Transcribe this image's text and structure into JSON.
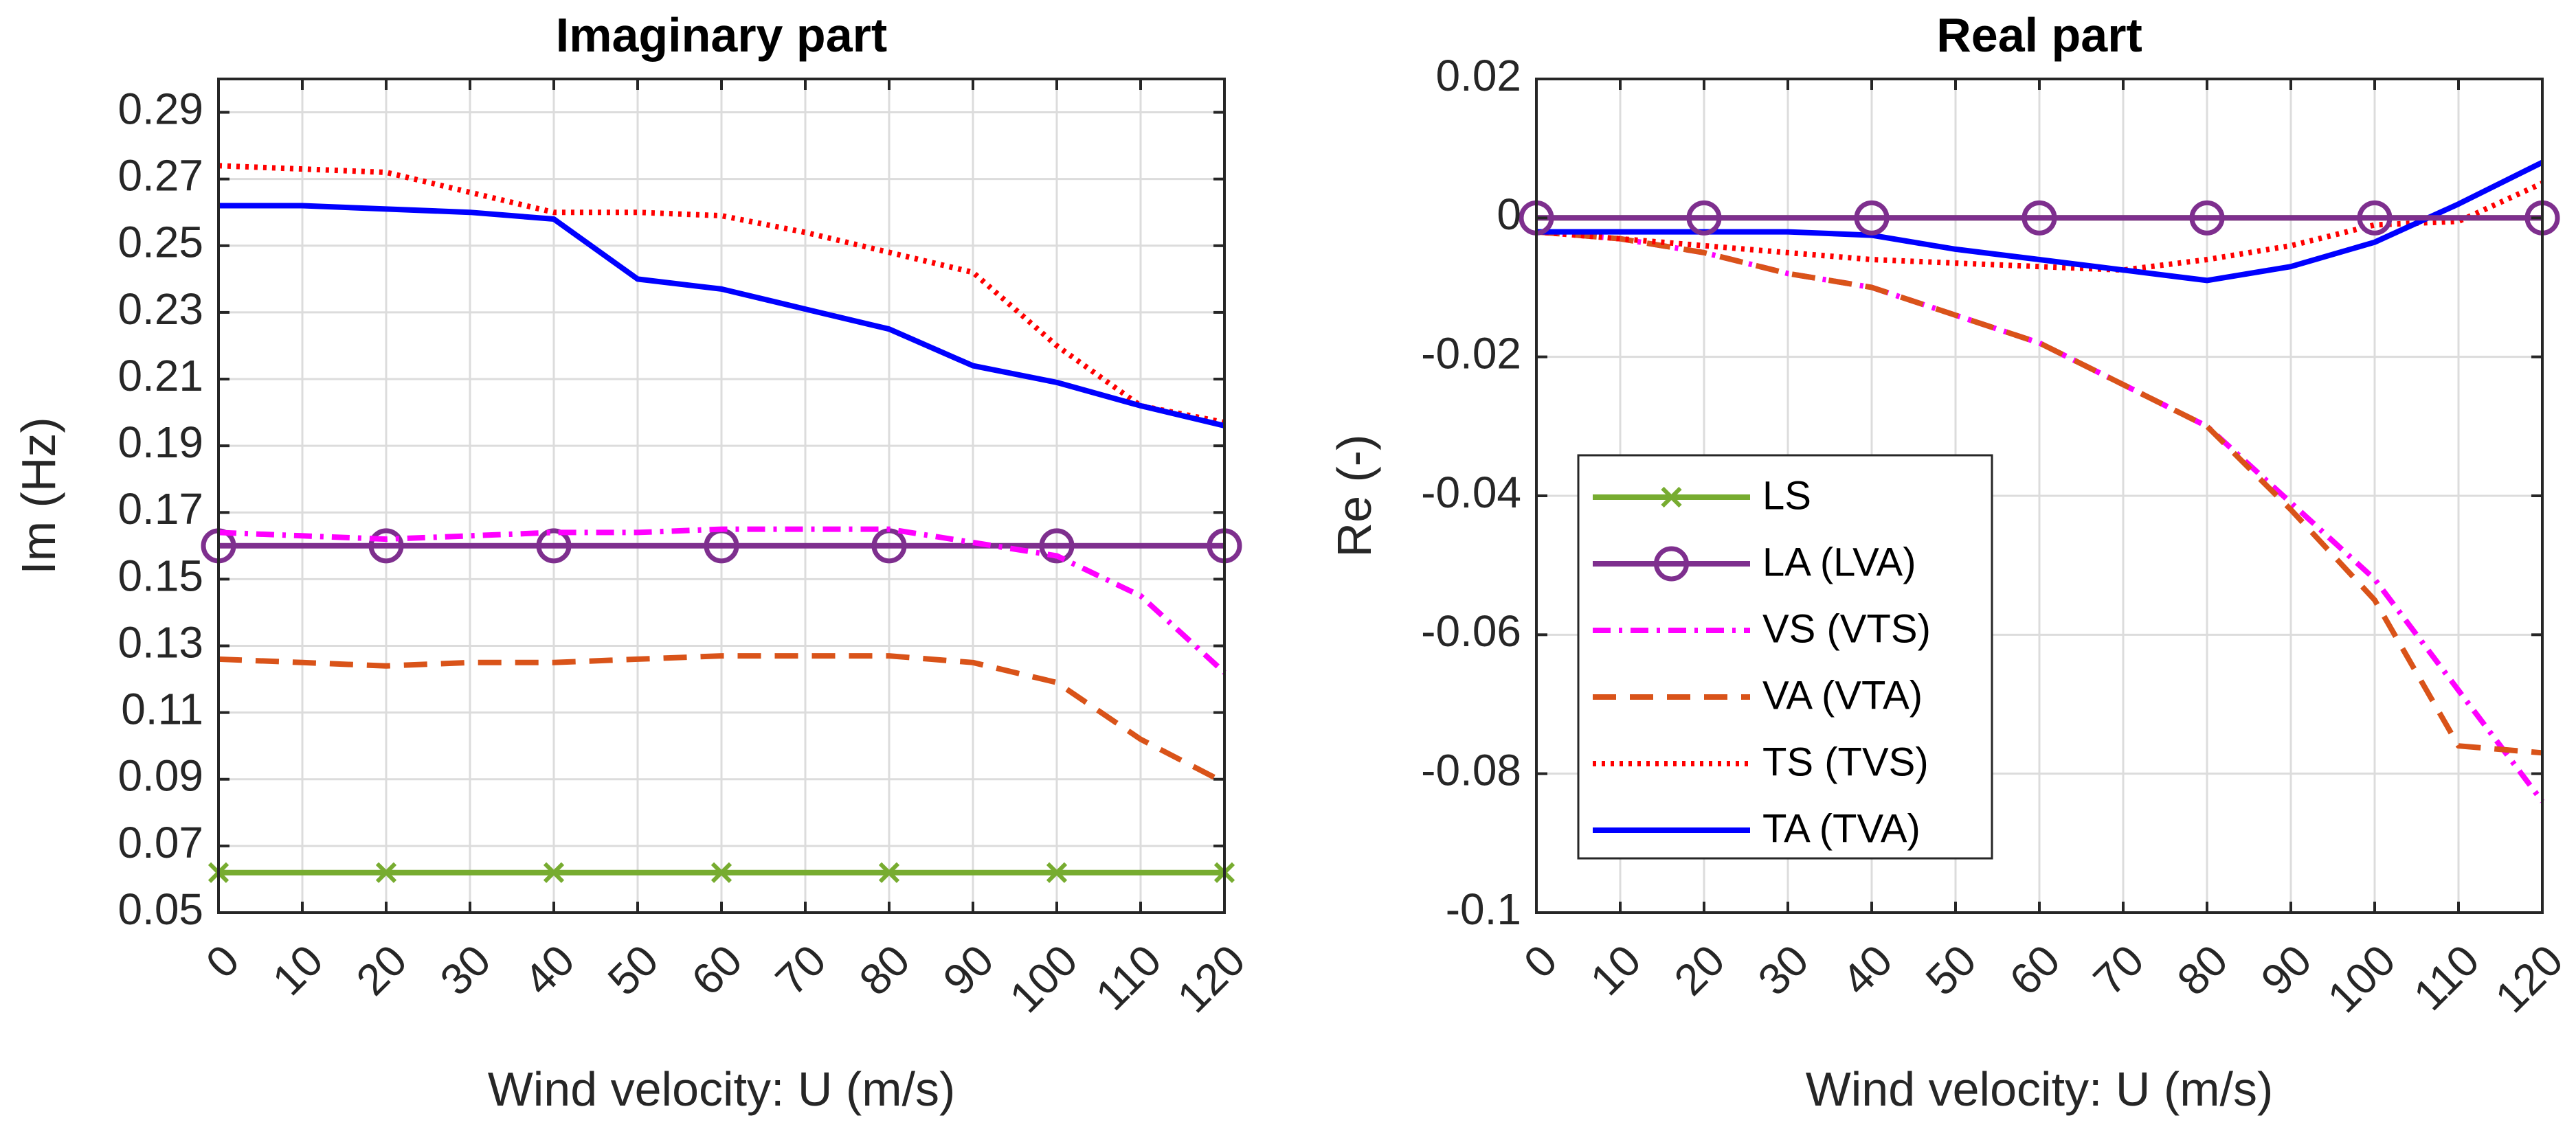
{
  "chart_data": [
    {
      "type": "line",
      "title": "Imaginary part",
      "xlabel": "Wind velocity: U (m/s)",
      "ylabel": "Im (Hz)",
      "xlim": [
        0,
        120
      ],
      "ylim": [
        0.05,
        0.3
      ],
      "xticks": [
        0,
        10,
        20,
        30,
        40,
        50,
        60,
        70,
        80,
        90,
        100,
        110,
        120
      ],
      "yticks": [
        0.05,
        0.07,
        0.09,
        0.11,
        0.13,
        0.15,
        0.17,
        0.19,
        0.21,
        0.23,
        0.25,
        0.27,
        0.29
      ],
      "ytick_labels": [
        "0.05",
        "0.07",
        "0.09",
        "0.11",
        "0.13",
        "0.15",
        "0.17",
        "0.19",
        "0.21",
        "0.23",
        "0.25",
        "0.27",
        "0.29"
      ],
      "grid": true,
      "series": [
        {
          "key": "LS",
          "name": "LS",
          "x": [
            0,
            20,
            40,
            60,
            80,
            100,
            120
          ],
          "values": [
            0.062,
            0.062,
            0.062,
            0.062,
            0.062,
            0.062,
            0.062
          ],
          "color": "#77ac30",
          "dash": "",
          "marker": "x",
          "markerX": [
            0,
            20,
            40,
            60,
            80,
            100,
            120
          ]
        },
        {
          "key": "LA",
          "name": "LA (LVA)",
          "x": [
            0,
            20,
            40,
            60,
            80,
            100,
            120
          ],
          "values": [
            0.16,
            0.16,
            0.16,
            0.16,
            0.16,
            0.16,
            0.16
          ],
          "color": "#7e2f8e",
          "dash": "",
          "marker": "o",
          "markerX": [
            0,
            20,
            40,
            60,
            80,
            100,
            120
          ]
        },
        {
          "key": "VS",
          "name": "VS (VTS)",
          "x": [
            0,
            10,
            20,
            30,
            40,
            50,
            60,
            70,
            80,
            90,
            100,
            110,
            120
          ],
          "values": [
            0.164,
            0.163,
            0.162,
            0.163,
            0.164,
            0.164,
            0.165,
            0.165,
            0.165,
            0.161,
            0.157,
            0.145,
            0.122
          ],
          "color": "#ff00ff",
          "dash": "26,12,5,12",
          "marker": "none",
          "markerX": []
        },
        {
          "key": "VA",
          "name": "VA (VTA)",
          "x": [
            0,
            10,
            20,
            30,
            40,
            50,
            60,
            70,
            80,
            90,
            100,
            110,
            120
          ],
          "values": [
            0.126,
            0.125,
            0.124,
            0.125,
            0.125,
            0.126,
            0.127,
            0.127,
            0.127,
            0.125,
            0.119,
            0.102,
            0.089
          ],
          "color": "#d95319",
          "dash": "34,20",
          "marker": "none",
          "markerX": []
        },
        {
          "key": "TS",
          "name": "TS (TVS)",
          "x": [
            0,
            10,
            20,
            30,
            40,
            50,
            60,
            70,
            80,
            90,
            100,
            110,
            120
          ],
          "values": [
            0.274,
            0.273,
            0.272,
            0.266,
            0.26,
            0.26,
            0.259,
            0.254,
            0.248,
            0.242,
            0.22,
            0.202,
            0.197
          ],
          "color": "#ff0000",
          "dash": "5,8",
          "marker": "none",
          "markerX": []
        },
        {
          "key": "TA",
          "name": "TA (TVA)",
          "x": [
            0,
            10,
            20,
            30,
            40,
            50,
            60,
            70,
            80,
            90,
            100,
            110,
            120
          ],
          "values": [
            0.262,
            0.262,
            0.261,
            0.26,
            0.258,
            0.24,
            0.237,
            0.231,
            0.225,
            0.214,
            0.209,
            0.202,
            0.196
          ],
          "color": "#0000ff",
          "dash": "",
          "marker": "none",
          "markerX": []
        }
      ]
    },
    {
      "type": "line",
      "title": "Real part",
      "xlabel": "Wind velocity: U (m/s)",
      "ylabel": "Re (-)",
      "xlim": [
        0,
        120
      ],
      "ylim": [
        -0.1,
        0.02
      ],
      "xticks": [
        0,
        10,
        20,
        30,
        40,
        50,
        60,
        70,
        80,
        90,
        100,
        110,
        120
      ],
      "yticks": [
        -0.1,
        -0.08,
        -0.06,
        -0.04,
        -0.02,
        0,
        0.02
      ],
      "ytick_labels": [
        "-0.1",
        "-0.08",
        "-0.06",
        "-0.04",
        "-0.02",
        "0",
        "0.02"
      ],
      "grid": true,
      "legend": {
        "position": "lower-left",
        "entries": [
          "LS",
          "LA (LVA)",
          "VS (VTS)",
          "VA (VTA)",
          "TS (TVS)",
          "TA (TVA)"
        ]
      },
      "series": [
        {
          "key": "LS",
          "name": "LS",
          "x": [
            0,
            20,
            40,
            60,
            80,
            100,
            120
          ],
          "values": [
            0,
            0,
            0,
            0,
            0,
            0,
            0
          ],
          "color": "#77ac30",
          "dash": "",
          "marker": "x",
          "markerX": []
        },
        {
          "key": "VS",
          "name": "VS (VTS)",
          "x": [
            0,
            10,
            20,
            30,
            40,
            50,
            60,
            70,
            80,
            90,
            100,
            110,
            120
          ],
          "values": [
            -0.002,
            -0.003,
            -0.005,
            -0.008,
            -0.01,
            -0.014,
            -0.018,
            -0.024,
            -0.03,
            -0.041,
            -0.052,
            -0.068,
            -0.084
          ],
          "color": "#ff00ff",
          "dash": "26,12,5,12",
          "marker": "none",
          "markerX": []
        },
        {
          "key": "VA",
          "name": "VA (VTA)",
          "x": [
            0,
            10,
            20,
            30,
            40,
            50,
            60,
            70,
            80,
            90,
            100,
            110,
            120
          ],
          "values": [
            -0.002,
            -0.003,
            -0.005,
            -0.008,
            -0.01,
            -0.014,
            -0.018,
            -0.024,
            -0.03,
            -0.042,
            -0.055,
            -0.076,
            -0.077
          ],
          "color": "#d95319",
          "dash": "34,20",
          "marker": "none",
          "markerX": []
        },
        {
          "key": "TS",
          "name": "TS (TVS)",
          "x": [
            0,
            10,
            20,
            30,
            40,
            50,
            60,
            70,
            80,
            90,
            100,
            110,
            120
          ],
          "values": [
            -0.002,
            -0.003,
            -0.004,
            -0.005,
            -0.006,
            -0.0065,
            -0.007,
            -0.0075,
            -0.006,
            -0.004,
            -0.001,
            -0.0005,
            0.005
          ],
          "color": "#ff0000",
          "dash": "5,8",
          "marker": "none",
          "markerX": []
        },
        {
          "key": "TA",
          "name": "TA (TVA)",
          "x": [
            0,
            10,
            20,
            30,
            40,
            50,
            60,
            70,
            80,
            90,
            100,
            110,
            120
          ],
          "values": [
            -0.002,
            -0.002,
            -0.002,
            -0.002,
            -0.0025,
            -0.0045,
            -0.006,
            -0.0075,
            -0.009,
            -0.007,
            -0.0035,
            0.002,
            0.008
          ],
          "color": "#0000ff",
          "dash": "",
          "marker": "none",
          "markerX": []
        },
        {
          "key": "LA",
          "name": "LA (LVA)",
          "x": [
            0,
            20,
            40,
            60,
            80,
            100,
            120
          ],
          "values": [
            0,
            0,
            0,
            0,
            0,
            0,
            0
          ],
          "color": "#7e2f8e",
          "dash": "",
          "marker": "o",
          "markerX": [
            0,
            20,
            40,
            60,
            80,
            100,
            120
          ]
        }
      ]
    }
  ]
}
